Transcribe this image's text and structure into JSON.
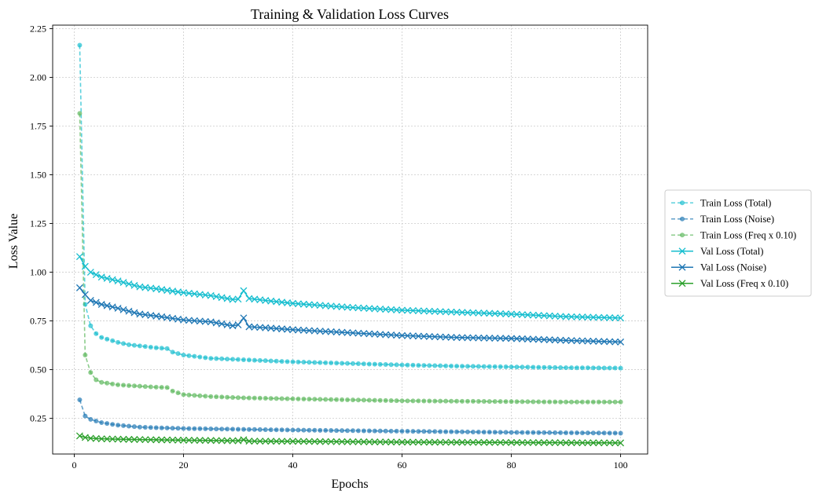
{
  "chart_data": {
    "type": "line",
    "title": "Training & Validation Loss Curves",
    "xlabel": "Epochs",
    "ylabel": "Loss Value",
    "xlim": [
      -3.95,
      104.95
    ],
    "ylim": [
      0.067,
      2.268
    ],
    "xticks": [
      0,
      20,
      40,
      60,
      80,
      100
    ],
    "yticks": [
      0.25,
      0.5,
      0.75,
      1.0,
      1.25,
      1.5,
      1.75,
      2.0,
      2.25
    ],
    "yticks_labels": [
      "0.25",
      "0.50",
      "0.75",
      "1.00",
      "1.25",
      "1.50",
      "1.75",
      "2.00",
      "2.25"
    ],
    "grid": true,
    "legend_position": "outside-right",
    "colors": {
      "total": "#17becf",
      "noise": "#1f77b4",
      "freq": "#2ca02c",
      "train_freq": "#5cb85c"
    },
    "series": [
      {
        "name": "Train Loss (Total)",
        "kind": "train",
        "color": "#17becf",
        "marker": "circle",
        "points": [
          [
            1,
            2.165
          ],
          [
            2,
            0.835
          ],
          [
            3,
            0.725
          ],
          [
            4,
            0.685
          ],
          [
            5,
            0.665
          ],
          [
            8,
            0.64
          ],
          [
            10,
            0.628
          ],
          [
            12,
            0.622
          ],
          [
            15,
            0.612
          ],
          [
            17,
            0.608
          ],
          [
            18,
            0.59
          ],
          [
            20,
            0.575
          ],
          [
            25,
            0.558
          ],
          [
            30,
            0.552
          ],
          [
            35,
            0.546
          ],
          [
            40,
            0.54
          ],
          [
            50,
            0.532
          ],
          [
            60,
            0.524
          ],
          [
            70,
            0.518
          ],
          [
            80,
            0.514
          ],
          [
            90,
            0.51
          ],
          [
            100,
            0.508
          ]
        ]
      },
      {
        "name": "Train Loss (Noise)",
        "kind": "train",
        "color": "#1f77b4",
        "marker": "circle",
        "points": [
          [
            1,
            0.345
          ],
          [
            2,
            0.262
          ],
          [
            3,
            0.245
          ],
          [
            5,
            0.228
          ],
          [
            8,
            0.215
          ],
          [
            12,
            0.205
          ],
          [
            15,
            0.202
          ],
          [
            20,
            0.198
          ],
          [
            30,
            0.194
          ],
          [
            40,
            0.19
          ],
          [
            50,
            0.187
          ],
          [
            60,
            0.184
          ],
          [
            70,
            0.181
          ],
          [
            80,
            0.178
          ],
          [
            90,
            0.176
          ],
          [
            100,
            0.174
          ]
        ]
      },
      {
        "name": "Train Loss (Freq x 0.10)",
        "kind": "train",
        "color": "#5cb85c",
        "marker": "circle",
        "points": [
          [
            1,
            1.815
          ],
          [
            2,
            0.575
          ],
          [
            3,
            0.485
          ],
          [
            4,
            0.448
          ],
          [
            5,
            0.435
          ],
          [
            8,
            0.422
          ],
          [
            10,
            0.418
          ],
          [
            12,
            0.415
          ],
          [
            15,
            0.41
          ],
          [
            17,
            0.408
          ],
          [
            18,
            0.39
          ],
          [
            20,
            0.372
          ],
          [
            25,
            0.362
          ],
          [
            30,
            0.356
          ],
          [
            40,
            0.35
          ],
          [
            50,
            0.345
          ],
          [
            60,
            0.34
          ],
          [
            70,
            0.338
          ],
          [
            80,
            0.336
          ],
          [
            90,
            0.334
          ],
          [
            100,
            0.334
          ]
        ]
      },
      {
        "name": "Val Loss (Total)",
        "kind": "val",
        "color": "#17becf",
        "marker": "x",
        "points": [
          [
            1,
            1.08
          ],
          [
            2,
            1.03
          ],
          [
            3,
            1.0
          ],
          [
            5,
            0.975
          ],
          [
            8,
            0.955
          ],
          [
            10,
            0.94
          ],
          [
            12,
            0.925
          ],
          [
            15,
            0.915
          ],
          [
            20,
            0.895
          ],
          [
            25,
            0.88
          ],
          [
            29,
            0.86
          ],
          [
            30,
            0.862
          ],
          [
            31,
            0.905
          ],
          [
            32,
            0.865
          ],
          [
            35,
            0.855
          ],
          [
            40,
            0.84
          ],
          [
            50,
            0.82
          ],
          [
            60,
            0.805
          ],
          [
            70,
            0.795
          ],
          [
            80,
            0.785
          ],
          [
            90,
            0.772
          ],
          [
            100,
            0.765
          ]
        ]
      },
      {
        "name": "Val Loss (Noise)",
        "kind": "val",
        "color": "#1f77b4",
        "marker": "x",
        "points": [
          [
            1,
            0.92
          ],
          [
            2,
            0.885
          ],
          [
            3,
            0.855
          ],
          [
            5,
            0.835
          ],
          [
            8,
            0.815
          ],
          [
            10,
            0.8
          ],
          [
            12,
            0.785
          ],
          [
            15,
            0.775
          ],
          [
            20,
            0.755
          ],
          [
            25,
            0.745
          ],
          [
            29,
            0.725
          ],
          [
            30,
            0.73
          ],
          [
            31,
            0.765
          ],
          [
            32,
            0.72
          ],
          [
            35,
            0.715
          ],
          [
            40,
            0.705
          ],
          [
            50,
            0.69
          ],
          [
            60,
            0.675
          ],
          [
            70,
            0.665
          ],
          [
            80,
            0.66
          ],
          [
            90,
            0.65
          ],
          [
            100,
            0.642
          ]
        ]
      },
      {
        "name": "Val Loss (Freq x 0.10)",
        "kind": "val",
        "color": "#2ca02c",
        "marker": "x",
        "points": [
          [
            1,
            0.16
          ],
          [
            2,
            0.152
          ],
          [
            3,
            0.148
          ],
          [
            5,
            0.145
          ],
          [
            10,
            0.142
          ],
          [
            20,
            0.138
          ],
          [
            30,
            0.135
          ],
          [
            31,
            0.14
          ],
          [
            32,
            0.133
          ],
          [
            40,
            0.132
          ],
          [
            50,
            0.13
          ],
          [
            60,
            0.128
          ],
          [
            70,
            0.127
          ],
          [
            80,
            0.126
          ],
          [
            90,
            0.125
          ],
          [
            100,
            0.124
          ]
        ]
      }
    ]
  }
}
